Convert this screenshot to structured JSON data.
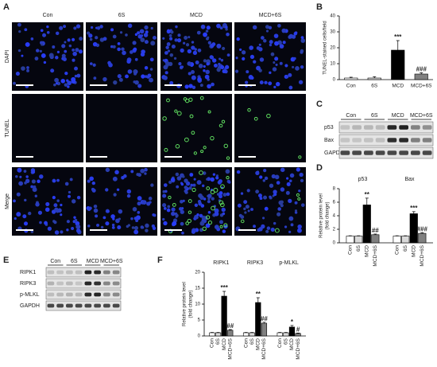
{
  "figure": {
    "A": {
      "label": "A",
      "columns": [
        "Con",
        "6S",
        "MCD",
        "MCD+6S"
      ],
      "rows": [
        "DAPI",
        "TUNEL",
        "Merge"
      ]
    },
    "C": {
      "label": "C",
      "columns": [
        "Con",
        "6S",
        "MCD",
        "MCD+6S"
      ],
      "rows": [
        "p53",
        "Bax",
        "GAPDH"
      ]
    },
    "E": {
      "label": "E",
      "columns": [
        "Con",
        "6S",
        "MCD",
        "MCD+6S"
      ],
      "rows": [
        "RIPK1",
        "RIPK3",
        "p-MLKL",
        "GAPDH"
      ]
    }
  },
  "chart_data": [
    {
      "type": "bar",
      "label": "B",
      "y_label": [
        "TUNEL-stained cells/field"
      ],
      "categories": [
        "Con",
        "6S",
        "MCD",
        "MCD+6S"
      ],
      "values": [
        1,
        1,
        18.5,
        3.5
      ],
      "errors": [
        0.5,
        0.8,
        6,
        0.8
      ],
      "significance": [
        null,
        null,
        "***",
        "###"
      ],
      "colors": [
        "#ffffff",
        "#d9d9d9",
        "#000000",
        "#808080"
      ],
      "ylim": [
        0,
        40
      ],
      "yticks": [
        0,
        10,
        20,
        30,
        40
      ]
    },
    {
      "type": "grouped_bar",
      "label": "D",
      "y_label": [
        "Relative protein level",
        "(fold change)"
      ],
      "categories": [
        "p53",
        "Bax"
      ],
      "series": [
        {
          "name": "Con",
          "color": "#ffffff",
          "values": [
            1,
            1
          ],
          "errors": [
            0.05,
            0.05
          ],
          "significance": [
            null,
            null
          ]
        },
        {
          "name": "6S",
          "color": "#d9d9d9",
          "values": [
            1,
            1
          ],
          "errors": [
            0.05,
            0.05
          ],
          "significance": [
            null,
            null
          ]
        },
        {
          "name": "MCD",
          "color": "#000000",
          "values": [
            5.6,
            4.3
          ],
          "errors": [
            1,
            0.3
          ],
          "significance": [
            "**",
            "***"
          ]
        },
        {
          "name": "MCD+6S",
          "color": "#808080",
          "values": [
            1.2,
            1.4
          ],
          "errors": [
            0.1,
            0.1
          ],
          "significance": [
            "##",
            "###"
          ]
        }
      ],
      "ylim": [
        0,
        8
      ],
      "yticks": [
        0,
        2,
        4,
        6,
        8
      ]
    },
    {
      "type": "grouped_bar",
      "label": "F",
      "y_label": [
        "Relative protein level",
        "(fold change)"
      ],
      "categories": [
        "RIPK1",
        "RIPK3",
        "p-MLKL"
      ],
      "series": [
        {
          "name": "Con",
          "color": "#ffffff",
          "values": [
            1,
            1,
            1
          ],
          "errors": [
            0.1,
            0.1,
            0.1
          ],
          "significance": [
            null,
            null,
            null
          ]
        },
        {
          "name": "6S",
          "color": "#d9d9d9",
          "values": [
            1,
            1,
            1
          ],
          "errors": [
            0.1,
            0.1,
            0.1
          ],
          "significance": [
            null,
            null,
            null
          ]
        },
        {
          "name": "MCD",
          "color": "#000000",
          "values": [
            12.5,
            10.5,
            2.8
          ],
          "errors": [
            1.5,
            1.5,
            0.5
          ],
          "significance": [
            "***",
            "**",
            "*"
          ]
        },
        {
          "name": "MCD+6S",
          "color": "#808080",
          "values": [
            1.8,
            4,
            0.8
          ],
          "errors": [
            0.2,
            0.3,
            0.1
          ],
          "significance": [
            "##",
            "##",
            "#"
          ]
        }
      ],
      "ylim": [
        0,
        20
      ],
      "yticks": [
        0,
        5,
        10,
        15,
        20
      ]
    }
  ]
}
